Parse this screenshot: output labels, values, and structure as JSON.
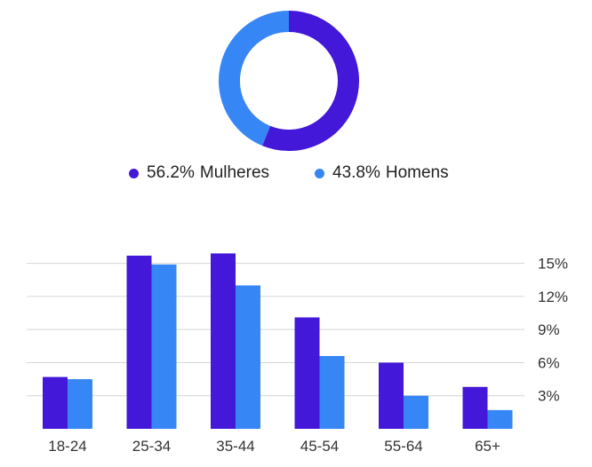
{
  "colors": {
    "women": "#4318d9",
    "men": "#3686f5",
    "grid": "#d6d6d6",
    "text": "#333333"
  },
  "chart_data": [
    {
      "type": "pie",
      "variant": "donut",
      "slices": [
        {
          "label": "Mulheres",
          "value": 56.2,
          "display": "56.2%",
          "color": "#4318d9"
        },
        {
          "label": "Homens",
          "value": 43.8,
          "display": "43.8%",
          "color": "#3686f5"
        }
      ],
      "legend": "bottom"
    },
    {
      "type": "bar",
      "categories": [
        "18-24",
        "25-34",
        "35-44",
        "45-54",
        "55-64",
        "65+"
      ],
      "series": [
        {
          "name": "Mulheres",
          "color": "#4318d9",
          "values": [
            4.7,
            15.7,
            15.9,
            10.1,
            6.0,
            3.8
          ]
        },
        {
          "name": "Homens",
          "color": "#3686f5",
          "values": [
            4.5,
            14.9,
            13.0,
            6.6,
            3.0,
            1.7
          ]
        }
      ],
      "y_ticks": [
        "3%",
        "6%",
        "9%",
        "12%",
        "15%"
      ],
      "y_tick_values": [
        3,
        6,
        9,
        12,
        15
      ],
      "ylim": [
        0,
        16.5
      ],
      "y_axis_side": "right",
      "grid": true,
      "title": "",
      "xlabel": "",
      "ylabel": ""
    }
  ]
}
